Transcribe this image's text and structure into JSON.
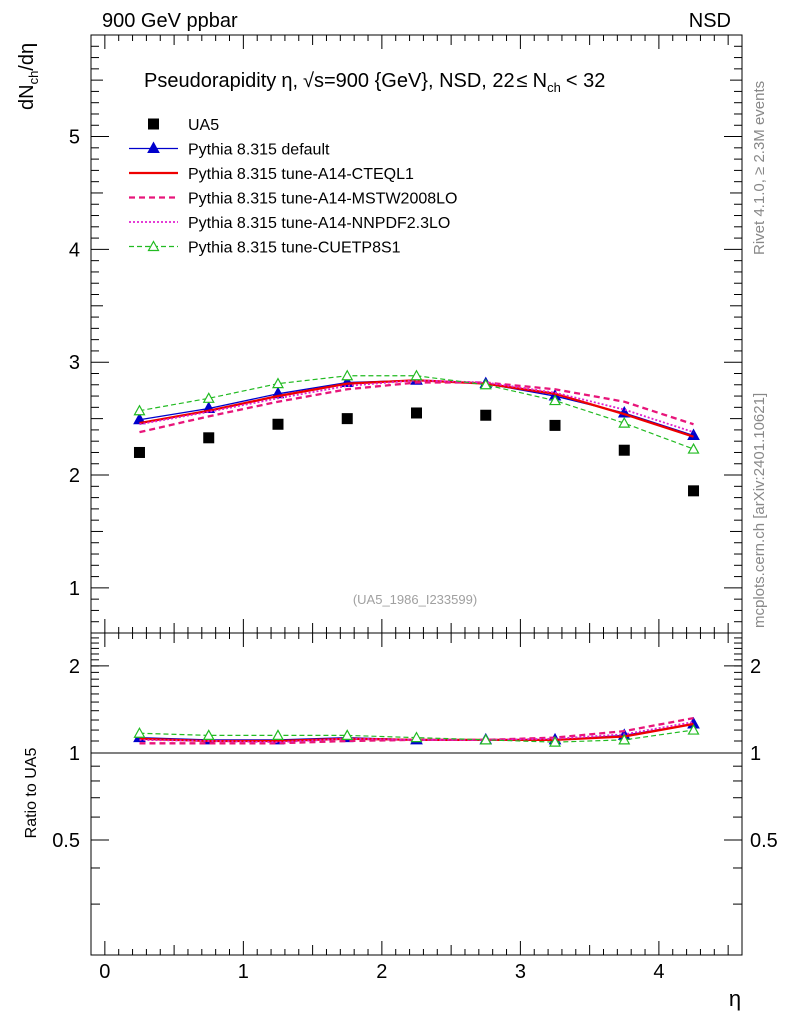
{
  "header": {
    "left": "900 GeV ppbar",
    "right": "NSD"
  },
  "side": {
    "rivet": "Rivet 4.1.0, ≥ 2.3M events",
    "mcplots": "mcplots.cern.ch [arXiv:2401.10621]"
  },
  "chart_data": {
    "type": "line",
    "title_parts": {
      "prefix": "Pseudorapidity",
      "eta": "η",
      "sep": ",",
      "sqrt": "√s=900 {GeV}, NSD, 22",
      "le": "≤",
      "n": "N",
      "ch": "ch",
      "tail": "< 32"
    },
    "ylabel": {
      "d1": "dN",
      "sub": "ch",
      "rest": "/dη"
    },
    "xlabel": "η",
    "ratio_ylabel": "Ratio to UA5",
    "watermark": "(UA5_1986_I233599)",
    "x": [
      0.25,
      0.75,
      1.25,
      1.75,
      2.25,
      2.75,
      3.25,
      3.75,
      4.25
    ],
    "xlim": [
      -0.1,
      4.6
    ],
    "ylim": [
      0.6,
      5.9
    ],
    "ratio_ylim": [
      0.2,
      2.6
    ],
    "xticks": [
      "0",
      "1",
      "2",
      "3",
      "4"
    ],
    "yticks": [
      "1",
      "2",
      "3",
      "4",
      "5"
    ],
    "ratio_yticks": [
      "0.5",
      "1",
      "2"
    ],
    "data": {
      "name": "UA5",
      "values": [
        2.2,
        2.33,
        2.45,
        2.5,
        2.55,
        2.53,
        2.44,
        2.22,
        1.86
      ]
    },
    "series": [
      {
        "name": "Pythia 8.315 default",
        "color": "#0000cc",
        "dash": "",
        "width": 1.3,
        "marker": "tri-filled",
        "values": [
          2.49,
          2.59,
          2.72,
          2.82,
          2.84,
          2.81,
          2.7,
          2.55,
          2.35
        ],
        "ratio": [
          1.13,
          1.11,
          1.11,
          1.13,
          1.11,
          1.11,
          1.11,
          1.15,
          1.26
        ]
      },
      {
        "name": "Pythia 8.315 tune-A14-CTEQL1",
        "color": "#ee0000",
        "dash": "",
        "width": 2.3,
        "marker": "none",
        "values": [
          2.46,
          2.57,
          2.7,
          2.81,
          2.84,
          2.81,
          2.72,
          2.54,
          2.34
        ],
        "ratio": [
          1.12,
          1.1,
          1.1,
          1.12,
          1.11,
          1.11,
          1.11,
          1.14,
          1.26
        ]
      },
      {
        "name": "Pythia 8.315 tune-A14-MSTW2008LO",
        "color": "#e8157a",
        "dash": "6,4",
        "width": 2.3,
        "marker": "none",
        "values": [
          2.38,
          2.52,
          2.65,
          2.76,
          2.82,
          2.82,
          2.76,
          2.65,
          2.45
        ],
        "ratio": [
          1.08,
          1.08,
          1.08,
          1.1,
          1.11,
          1.11,
          1.13,
          1.19,
          1.32
        ]
      },
      {
        "name": "Pythia 8.315 tune-A14-NNPDF2.3LO",
        "color": "#e020d0",
        "dash": "2,2",
        "width": 1.8,
        "marker": "none",
        "values": [
          2.45,
          2.56,
          2.68,
          2.79,
          2.84,
          2.82,
          2.73,
          2.58,
          2.38
        ],
        "ratio": [
          1.11,
          1.1,
          1.09,
          1.12,
          1.11,
          1.11,
          1.12,
          1.16,
          1.28
        ]
      },
      {
        "name": "Pythia 8.315 tune-CUETP8S1",
        "color": "#22bb22",
        "dash": "5,3",
        "width": 1.2,
        "marker": "tri-open",
        "values": [
          2.57,
          2.68,
          2.81,
          2.88,
          2.88,
          2.8,
          2.66,
          2.46,
          2.23
        ],
        "ratio": [
          1.17,
          1.15,
          1.15,
          1.15,
          1.13,
          1.11,
          1.09,
          1.11,
          1.2
        ]
      }
    ]
  }
}
